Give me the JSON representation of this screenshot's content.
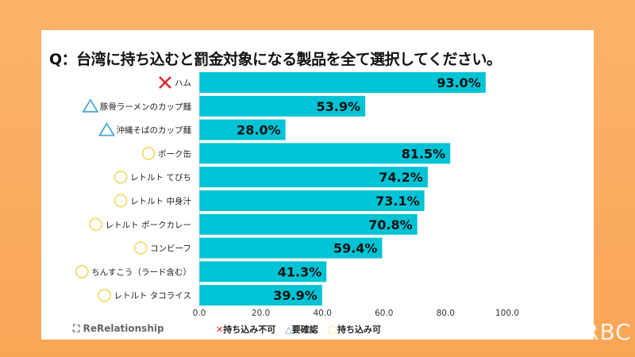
{
  "chart_data": {
    "type": "bar",
    "orientation": "horizontal",
    "title": "Q：台湾に持ち込むと罰金対象になる製品を全て選択してください。",
    "categories": [
      "ハム",
      "豚骨ラーメンのカップ麺",
      "沖縄そばのカップ麺",
      "ポーク缶",
      "レトルト てびち",
      "レトルト 中身汁",
      "レトルト ポークカレー",
      "コンビーフ",
      "ちんすこう（ラード含む）",
      "レトルト タコライス"
    ],
    "markers": [
      "cross",
      "triangle",
      "triangle",
      "circle",
      "circle",
      "circle",
      "circle",
      "circle",
      "circle",
      "circle"
    ],
    "values": [
      93.0,
      53.9,
      28.0,
      81.5,
      74.2,
      73.1,
      70.8,
      59.4,
      41.3,
      39.9
    ],
    "data_labels": [
      "93.0%",
      "53.9%",
      "28.0%",
      "81.5%",
      "74.2%",
      "73.1%",
      "70.8%",
      "59.4%",
      "41.3%",
      "39.9%"
    ],
    "xlim": [
      0,
      100
    ],
    "xticks": [
      "0.0",
      "20.0",
      "40.0",
      "60.0",
      "80.0",
      "100.0"
    ],
    "bar_color": "#00c3d5",
    "marker_colors": {
      "cross": "#e8262a",
      "triangle": "#4aa8d8",
      "circle": "#f0e07a"
    },
    "legend": [
      {
        "marker": "cross",
        "label": "持ち込み不可"
      },
      {
        "marker": "triangle",
        "label": "要確認"
      },
      {
        "marker": "circle",
        "label": "持ち込み可"
      }
    ],
    "legend_position": "bottom"
  },
  "brand": "ReRelationship",
  "watermark": "RBC"
}
